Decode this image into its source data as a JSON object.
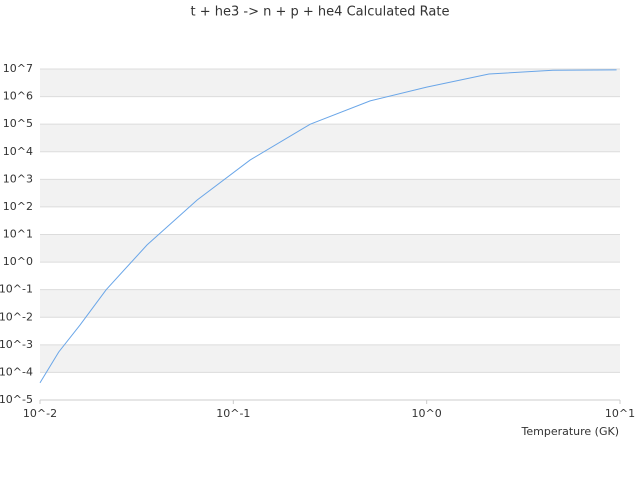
{
  "chart_data": {
    "type": "line",
    "title": "t + he3 -> n + p + he4 Calculated Rate",
    "x_label": "Temperature (GK)",
    "x_log": true,
    "y_log": true,
    "grid": true,
    "xlim": [
      0.01,
      10
    ],
    "ylim": [
      1e-05,
      10000000
    ],
    "xticks": [
      {
        "value": 0.01,
        "label": "10^-2"
      },
      {
        "value": 0.1,
        "label": "10^-1"
      },
      {
        "value": 1,
        "label": "10^0"
      },
      {
        "value": 10,
        "label": "10^1"
      }
    ],
    "yticks": [
      {
        "value": 1e-05,
        "label": "10^-5"
      },
      {
        "value": 0.0001,
        "label": "10^-4"
      },
      {
        "value": 0.001,
        "label": "10^-3"
      },
      {
        "value": 0.01,
        "label": "10^-2"
      },
      {
        "value": 0.1,
        "label": "10^-1"
      },
      {
        "value": 1,
        "label": "10^0"
      },
      {
        "value": 10,
        "label": "10^1"
      },
      {
        "value": 100,
        "label": "10^2"
      },
      {
        "value": 1000,
        "label": "10^3"
      },
      {
        "value": 10000,
        "label": "10^4"
      },
      {
        "value": 100000,
        "label": "10^5"
      },
      {
        "value": 1000000,
        "label": "10^6"
      },
      {
        "value": 10000000,
        "label": "10^7"
      }
    ],
    "series": [
      {
        "color": "#6aa6e8",
        "x": [
          0.01,
          0.0125,
          0.0161,
          0.022,
          0.0358,
          0.065,
          0.122,
          0.25,
          0.51,
          1,
          2.1,
          4.5,
          9.6
        ],
        "values": [
          4.2e-05,
          0.00055,
          0.0052,
          0.1,
          4.2,
          178,
          5000,
          100000,
          700000,
          2200000,
          6600000,
          9000000,
          9300000
        ]
      }
    ]
  }
}
